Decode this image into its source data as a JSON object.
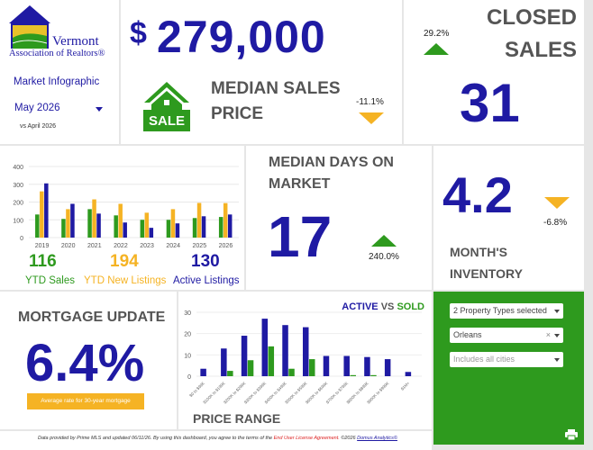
{
  "header": {
    "logo_line1": "Vermont",
    "logo_line2": "Association of Realtors®",
    "infographic_label": "Market Infographic",
    "month_select": "May 2026",
    "comparison": "vs April 2026"
  },
  "median_price": {
    "currency": "$",
    "value": "279,000",
    "label_line1": "MEDIAN SALES",
    "label_line2": "PRICE",
    "sale_sign": "SALE",
    "change": "-11.1%"
  },
  "closed_sales": {
    "label_line1": "CLOSED",
    "label_line2": "SALES",
    "value": "31",
    "change": "29.2%"
  },
  "ytd_chart": {
    "y_ticks": [
      "400",
      "300",
      "200",
      "100",
      "0"
    ],
    "summary": {
      "sales_value": "116",
      "sales_label": "YTD Sales",
      "listings_value": "194",
      "listings_label": "YTD New Listings",
      "active_value": "130",
      "active_label": "Active Listings"
    }
  },
  "days_on_market": {
    "label_line1": "MEDIAN DAYS ON",
    "label_line2": "MARKET",
    "value": "17",
    "change": "240.0%"
  },
  "months_inventory": {
    "value": "4.2",
    "change": "-6.8%",
    "label_line1": "MONTH'S",
    "label_line2": "INVENTORY"
  },
  "mortgage": {
    "title": "MORTGAGE UPDATE",
    "rate": "6.4%",
    "caption": "Average rate for 30-year mortgage"
  },
  "price_range": {
    "legend_active": "ACTIVE",
    "legend_vs": "VS",
    "legend_sold": "SOLD",
    "title": "PRICE RANGE",
    "y_ticks": [
      "30",
      "20",
      "10",
      "0"
    ]
  },
  "filters": {
    "property_types": "2 Property Types selected",
    "county": "Orleans",
    "cities": "Includes all cities"
  },
  "footer": {
    "text_a": "Data provided by Prime MLS and updated 06/11/26.  By using this dashboard, you agree to the terms of the ",
    "link_eula": "End User License Agreement.",
    "text_b": "  ©2026 ",
    "link_domus": "Domus Analytics©"
  },
  "colors": {
    "navy": "#1f1aa3",
    "green": "#2e9a1e",
    "orange": "#f5b324",
    "panel_green": "#2e9a1e"
  },
  "chart_data": [
    {
      "type": "bar",
      "categories": [
        "2019",
        "2020",
        "2021",
        "2022",
        "2023",
        "2024",
        "2025",
        "2026"
      ],
      "ylim": [
        0,
        400
      ],
      "series": [
        {
          "name": "YTD Sales",
          "color": "#2e9a1e",
          "values": [
            130,
            105,
            160,
            125,
            100,
            100,
            110,
            116
          ]
        },
        {
          "name": "YTD New Listings",
          "color": "#f5b324",
          "values": [
            260,
            160,
            215,
            190,
            140,
            160,
            195,
            194
          ]
        },
        {
          "name": "Active Listings",
          "color": "#1f1aa3",
          "values": [
            305,
            190,
            135,
            85,
            55,
            80,
            120,
            130
          ]
        }
      ]
    },
    {
      "type": "bar",
      "categories": [
        "$0 to $99K",
        "$100K to $199K",
        "$200K to $299K",
        "$300K to $399K",
        "$400K to $499K",
        "$500K to $599K",
        "$600K to $699K",
        "$700K to $799K",
        "$800K to $899K",
        "$900K to $999K",
        "$1M+"
      ],
      "ylim": [
        0,
        30
      ],
      "series": [
        {
          "name": "ACTIVE",
          "color": "#1f1aa3",
          "values": [
            3.5,
            13,
            19,
            27,
            24,
            23,
            9.5,
            9.5,
            9,
            8,
            2
          ]
        },
        {
          "name": "SOLD",
          "color": "#2e9a1e",
          "values": [
            0,
            2.5,
            7.5,
            14,
            3.5,
            8,
            0,
            0.5,
            0.5,
            0,
            0
          ]
        }
      ]
    }
  ]
}
